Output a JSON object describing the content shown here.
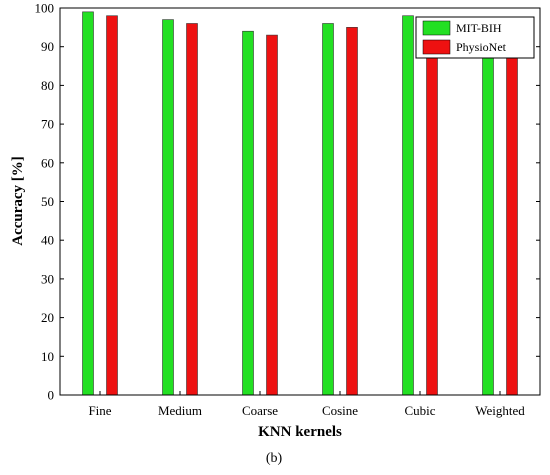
{
  "chart_data": {
    "type": "bar",
    "xlabel": "KNN kernels",
    "ylabel": "Accuracy [%]",
    "ylim": [
      0,
      100
    ],
    "yticks": [
      0,
      10,
      20,
      30,
      40,
      50,
      60,
      70,
      80,
      90,
      100
    ],
    "categories": [
      "Fine",
      "Medium",
      "Coarse",
      "Cosine",
      "Cubic",
      "Weighted"
    ],
    "series": [
      {
        "name": "MIT-BIH",
        "color": "#22e022",
        "values": [
          99,
          97,
          94,
          96,
          98,
          97
        ]
      },
      {
        "name": "PhysioNet",
        "color": "#ee1111",
        "values": [
          98,
          96,
          93,
          95,
          97,
          96
        ]
      }
    ],
    "grid": false,
    "legend_position": "top-right",
    "caption": "(b)"
  }
}
